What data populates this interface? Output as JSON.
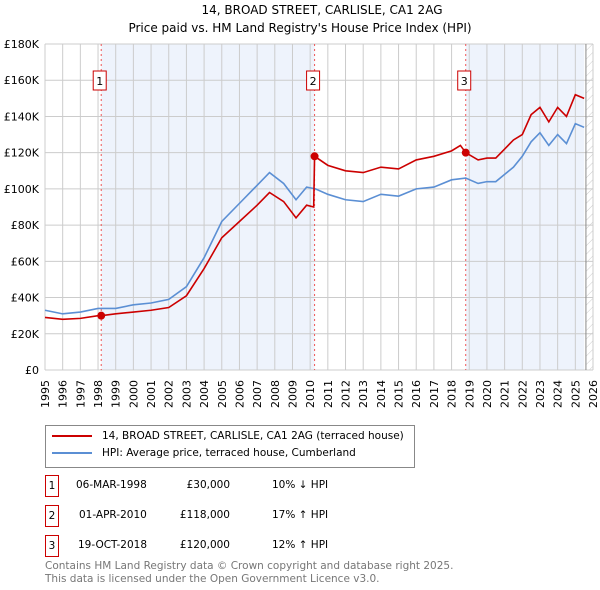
{
  "chart_data": {
    "type": "line",
    "title": "14, BROAD STREET, CARLISLE, CA1 2AG",
    "subtitle": "Price paid vs. HM Land Registry's House Price Index (HPI)",
    "xlim": [
      1995,
      2026
    ],
    "ylim": [
      0,
      180000
    ],
    "y_ticks": [
      0,
      20000,
      40000,
      60000,
      80000,
      100000,
      120000,
      140000,
      160000,
      180000
    ],
    "y_tick_labels": [
      "£0",
      "£20K",
      "£40K",
      "£60K",
      "£80K",
      "£100K",
      "£120K",
      "£140K",
      "£160K",
      "£180K"
    ],
    "x_ticks": [
      1995,
      1996,
      1997,
      1998,
      1999,
      2000,
      2001,
      2002,
      2003,
      2004,
      2005,
      2006,
      2007,
      2008,
      2009,
      2010,
      2011,
      2012,
      2013,
      2014,
      2015,
      2016,
      2017,
      2018,
      2019,
      2020,
      2021,
      2022,
      2023,
      2024,
      2025,
      2026
    ],
    "grid": true,
    "series": [
      {
        "name": "14, BROAD STREET, CARLISLE, CA1 2AG (terraced house)",
        "color": "#cc0000",
        "x": [
          1995,
          1996,
          1997,
          1998,
          1998.18,
          1999,
          2000,
          2001,
          2002,
          2003,
          2004,
          2005,
          2006,
          2007,
          2007.7,
          2008.5,
          2009.2,
          2009.8,
          2010.2,
          2010.25,
          2011,
          2012,
          2013,
          2014,
          2015,
          2016,
          2017,
          2018,
          2018.5,
          2018.8,
          2019.5,
          2020,
          2020.5,
          2021,
          2021.5,
          2022,
          2022.5,
          2023,
          2023.5,
          2024,
          2024.5,
          2025,
          2025.5
        ],
        "y": [
          29000,
          28000,
          28500,
          30000,
          30000,
          31000,
          32000,
          33000,
          34500,
          41000,
          56000,
          73000,
          82000,
          91000,
          98000,
          93000,
          84000,
          91000,
          90000,
          118000,
          113000,
          110000,
          109000,
          112000,
          111000,
          116000,
          118000,
          121000,
          124000,
          120000,
          116000,
          117000,
          117000,
          122000,
          127000,
          130000,
          141000,
          145000,
          137000,
          145000,
          140000,
          152000,
          150000
        ]
      },
      {
        "name": "HPI: Average price, terraced house, Cumberland",
        "color": "#5b8fd4",
        "x": [
          1995,
          1996,
          1997,
          1998,
          1999,
          2000,
          2001,
          2002,
          2003,
          2004,
          2005,
          2006,
          2007,
          2007.7,
          2008.5,
          2009.2,
          2009.8,
          2010.3,
          2011,
          2012,
          2013,
          2014,
          2015,
          2016,
          2017,
          2018,
          2018.8,
          2019.5,
          2020,
          2020.5,
          2021,
          2021.5,
          2022,
          2022.5,
          2023,
          2023.5,
          2024,
          2024.5,
          2025,
          2025.5
        ],
        "y": [
          33000,
          31000,
          32000,
          34000,
          34000,
          36000,
          37000,
          39000,
          46000,
          62000,
          82000,
          92000,
          102000,
          109000,
          103000,
          94000,
          101000,
          100000,
          97000,
          94000,
          93000,
          97000,
          96000,
          100000,
          101000,
          105000,
          106000,
          103000,
          104000,
          104000,
          108000,
          112000,
          118000,
          126000,
          131000,
          124000,
          130000,
          125000,
          136000,
          134000
        ]
      }
    ],
    "sales": [
      {
        "id": "1",
        "x": 1998.18,
        "y": 30000
      },
      {
        "id": "2",
        "x": 2010.25,
        "y": 118000
      },
      {
        "id": "3",
        "x": 2018.8,
        "y": 120000
      }
    ],
    "shaded_ranges": [
      [
        1998.18,
        2010.25
      ],
      [
        2018.8,
        2025.5
      ]
    ],
    "legend_placement": "below"
  },
  "legend": [
    {
      "label": "14, BROAD STREET, CARLISLE, CA1 2AG (terraced house)",
      "color": "#cc0000"
    },
    {
      "label": "HPI: Average price, terraced house, Cumberland",
      "color": "#5b8fd4"
    }
  ],
  "transactions": [
    {
      "id": "1",
      "date": "06-MAR-1998",
      "price": "£30,000",
      "hpi": "10% ↓ HPI"
    },
    {
      "id": "2",
      "date": "01-APR-2010",
      "price": "£118,000",
      "hpi": "17% ↑ HPI"
    },
    {
      "id": "3",
      "date": "19-OCT-2018",
      "price": "£120,000",
      "hpi": "12% ↑ HPI"
    }
  ],
  "footer": {
    "line1": "Contains HM Land Registry data © Crown copyright and database right 2025.",
    "line2": "This data is licensed under the Open Government Licence v3.0."
  }
}
